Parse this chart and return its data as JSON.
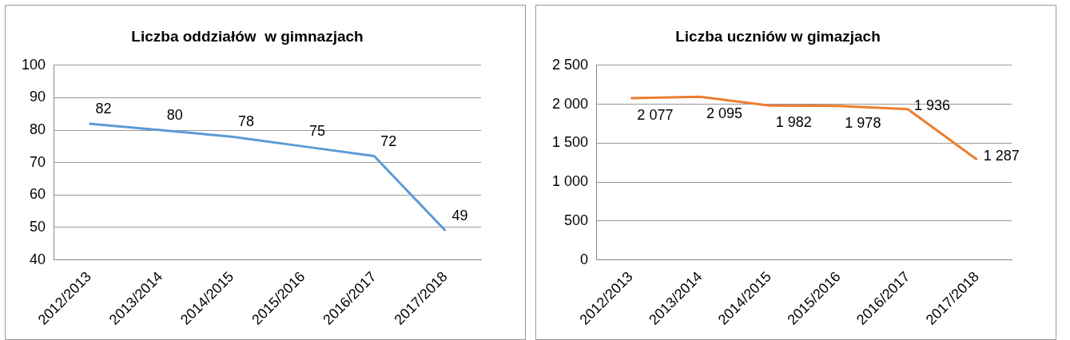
{
  "chart_data": [
    {
      "type": "line",
      "title": "Liczba oddziałów  w gimnazjach",
      "categories": [
        "2012/2013",
        "2013/2014",
        "2014/2015",
        "2015/2016",
        "2016/2017",
        "2017/2018"
      ],
      "series": [
        {
          "color": "#5b9bd5",
          "values": [
            82,
            80,
            78,
            75,
            72,
            49
          ]
        }
      ],
      "ylim": [
        40,
        100
      ],
      "yticks": [
        40,
        50,
        60,
        70,
        80,
        90,
        100
      ],
      "grid": "y",
      "legend": false,
      "marker": "none",
      "data_labels": true
    },
    {
      "type": "line",
      "title": "Liczba uczniów w gimazjach",
      "categories": [
        "2012/2013",
        "2013/2014",
        "2014/2015",
        "2015/2016",
        "2016/2017",
        "2017/2018"
      ],
      "series": [
        {
          "color": "#ed7d31",
          "values": [
            2077,
            2095,
            1982,
            1978,
            1936,
            1287
          ],
          "value_labels": [
            "2 077",
            "2 095",
            "1 982",
            "1 978",
            "1 936",
            "1 287"
          ]
        }
      ],
      "ylim": [
        0,
        2500
      ],
      "yticks": [
        0,
        {
          "value": 500,
          "label": "500"
        },
        {
          "value": 1000,
          "label": "1 000"
        },
        {
          "value": 1500,
          "label": "1 500"
        },
        {
          "value": 2000,
          "label": "2 000"
        },
        {
          "value": 2500,
          "label": "2 500"
        }
      ],
      "grid": "y",
      "legend": false,
      "marker": "none"
    }
  ]
}
